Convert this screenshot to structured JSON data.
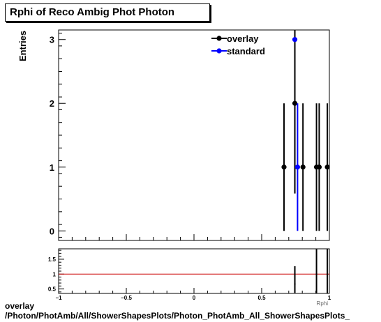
{
  "chart_data": [
    {
      "type": "scatter",
      "title": "Rphi of Reco Ambig Phot Photon",
      "ylabel": "Entries",
      "xlim": [
        -1,
        1
      ],
      "ylim": [
        -0.15,
        3.15
      ],
      "y_ticks": [
        0,
        1,
        2,
        3
      ],
      "y_tick_labels": [
        "0",
        "1",
        "2",
        "3"
      ],
      "legend_position": "top-right",
      "legend": [
        "overlay",
        "standard"
      ],
      "colors": {
        "overlay": "#000000",
        "standard": "#0000ff"
      },
      "series": [
        {
          "name": "overlay",
          "points": [
            {
              "x": 0.665,
              "y": 1,
              "err": 1
            },
            {
              "x": 0.745,
              "y": 2,
              "err": 1.414
            },
            {
              "x": 0.805,
              "y": 1,
              "err": 1
            },
            {
              "x": 0.905,
              "y": 1,
              "err": 1
            },
            {
              "x": 0.925,
              "y": 1,
              "err": 1
            },
            {
              "x": 0.985,
              "y": 1,
              "err": 1
            }
          ]
        },
        {
          "name": "standard",
          "points": [
            {
              "x": 0.745,
              "y": 3,
              "err": 0
            },
            {
              "x": 0.765,
              "y": 1,
              "err": 1
            }
          ]
        }
      ]
    },
    {
      "type": "scatter",
      "xlabel": "Rphi",
      "xlim": [
        -1,
        1
      ],
      "ylim": [
        0.35,
        1.85
      ],
      "x_ticks": [
        -1,
        -0.5,
        0,
        0.5,
        1
      ],
      "x_tick_labels": [
        "−1",
        "−0.5",
        "0",
        "0.5",
        "1"
      ],
      "y_ticks": [
        0.5,
        1,
        1.5
      ],
      "y_tick_labels": [
        "0.5",
        "1",
        "1.5"
      ],
      "reference_line": {
        "y": 1,
        "color": "#cc0000"
      },
      "points": [
        {
          "x": 0.745,
          "y": 0.667,
          "err_low": 0.3,
          "err_high": 0.6
        },
        {
          "x": 0.905,
          "y": 1,
          "err_low": 0.7,
          "err_high": 0.85
        },
        {
          "x": 0.985,
          "y": 1,
          "err_low": 0.7,
          "err_high": 0.85
        }
      ]
    }
  ],
  "footer": {
    "line1": "overlay",
    "line2": "/Photon/PhotAmb/All/ShowerShapesPlots/Photon_PhotAmb_All_ShowerShapesPlots_"
  }
}
